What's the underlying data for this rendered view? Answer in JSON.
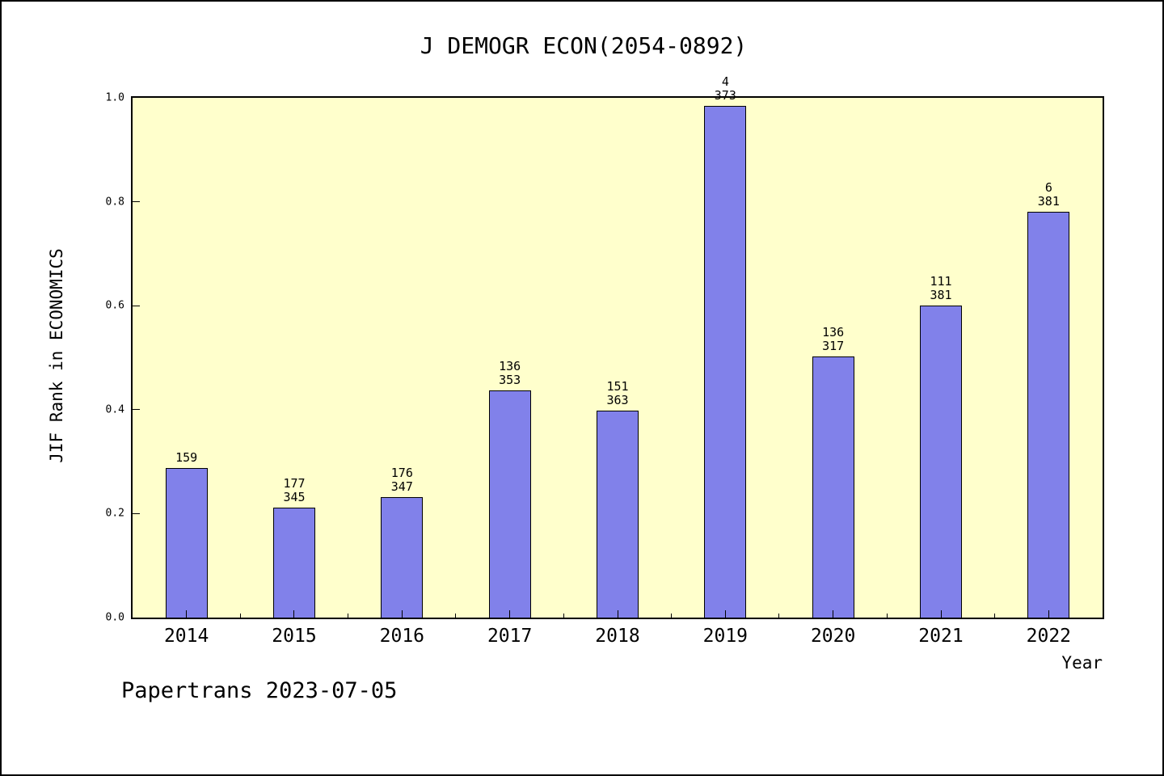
{
  "title": "J DEMOGR ECON(2054-0892)",
  "footer": "Papertrans 2023-07-05",
  "chart_data": {
    "type": "bar",
    "title": "J DEMOGR ECON(2054-0892)",
    "xlabel": "Year",
    "ylabel": "JIF Rank in ECONOMICS",
    "ylim": [
      0.0,
      1.0
    ],
    "yticks": [
      0.0,
      0.2,
      0.4,
      0.6,
      0.8,
      1.0
    ],
    "grid": false,
    "legend": "none",
    "categories": [
      "2014",
      "2015",
      "2016",
      "2017",
      "2018",
      "2019",
      "2020",
      "2021",
      "2022"
    ],
    "values": [
      0.287,
      0.212,
      0.231,
      0.437,
      0.398,
      0.984,
      0.503,
      0.601,
      0.78
    ],
    "bar_labels": [
      [
        "159"
      ],
      [
        "177",
        "345"
      ],
      [
        "176",
        "347"
      ],
      [
        "136",
        "353"
      ],
      [
        "151",
        "363"
      ],
      [
        "4",
        "373"
      ],
      [
        "136",
        "317"
      ],
      [
        "111",
        "381"
      ],
      [
        "6",
        "381"
      ]
    ],
    "bar_color": "#8181ea",
    "bar_border_color": "#000000",
    "plot_background": "#ffffcc",
    "frame_color": "#000000"
  }
}
